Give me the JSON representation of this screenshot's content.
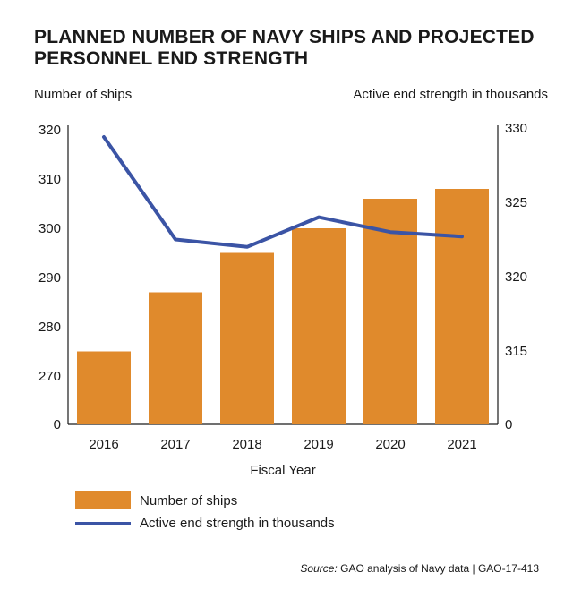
{
  "chart_data": {
    "type": "bar+line",
    "title": "PLANNED NUMBER OF NAVY SHIPS AND PROJECTED PERSONNEL END STRENGTH",
    "xlabel": "Fiscal Year",
    "categories": [
      "2016",
      "2017",
      "2018",
      "2019",
      "2020",
      "2021"
    ],
    "series": [
      {
        "name": "Number of ships",
        "type": "bar",
        "axis": "left",
        "color": "#e08a2c",
        "values": [
          275,
          287,
          295,
          300,
          306,
          308
        ]
      },
      {
        "name": "Active end strength in thousands",
        "type": "line",
        "axis": "right",
        "color": "#3b54a5",
        "values": [
          329.4,
          322.5,
          322.0,
          324.0,
          323.0,
          322.7
        ]
      }
    ],
    "y_left": {
      "label": "Number of ships",
      "ticks": [
        "0",
        "270",
        "280",
        "290",
        "300",
        "310",
        "320"
      ],
      "axis_break": "0 to 260"
    },
    "y_right": {
      "label": "Active end strength in thousands",
      "ticks": [
        "0",
        "315",
        "320",
        "325",
        "330"
      ],
      "axis_break": "0 to 310"
    },
    "legend": [
      "Number of ships",
      "Active end strength in thousands"
    ],
    "source_label": "Source:",
    "source_text": "GAO analysis of Navy data | GAO-17-413"
  }
}
